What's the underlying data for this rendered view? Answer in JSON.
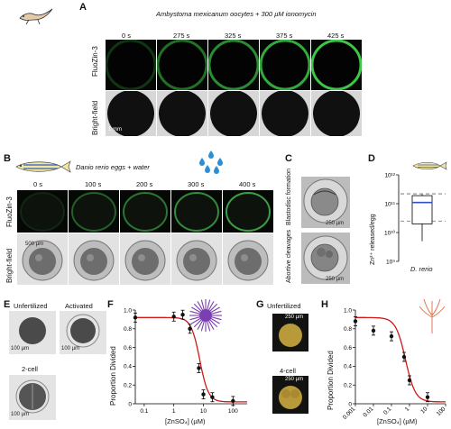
{
  "panels": {
    "A": {
      "letter": "A",
      "title": "Ambystoma mexicanum oocytes + 300 µM ionomycin",
      "times": [
        "0 s",
        "275 s",
        "325 s",
        "375 s",
        "425 s"
      ],
      "row1": "FluoZin-3",
      "row2": "Bright-field",
      "scale": "1 mm"
    },
    "B": {
      "letter": "B",
      "title": "Danio rerio eggs + water",
      "times": [
        "0 s",
        "100 s",
        "200 s",
        "300 s",
        "400 s"
      ],
      "row1": "FluoZin-3",
      "row2": "Bright-field",
      "scale": "500 µm"
    },
    "C": {
      "letter": "C",
      "row1": "Blastodisc formation",
      "row2": "Abortive cleavages",
      "scale": "250 µm"
    },
    "D": {
      "letter": "D",
      "ylabel": "Zn²⁺ released/egg",
      "xlabel": "D. rerio",
      "ticks": [
        "10⁹",
        "10¹⁰",
        "10¹¹",
        "10¹²"
      ]
    },
    "E": {
      "letter": "E",
      "labels": [
        "Unfertilized",
        "Activated",
        "2-cell"
      ],
      "scale": "100 µm"
    },
    "F": {
      "letter": "F",
      "ylabel": "Proportion Divided",
      "xlabel": "[ZnSO₄] (µM)",
      "xticks": [
        "0.1",
        "1",
        "10",
        "100"
      ],
      "yticks": [
        "0",
        "0.2",
        "0.4",
        "0.6",
        "0.8",
        "1.0"
      ]
    },
    "G": {
      "letter": "G",
      "labels": [
        "Unfertilized",
        "4-cell"
      ],
      "scale": "250 µm"
    },
    "H": {
      "letter": "H",
      "ylabel": "Proportion Divided",
      "xlabel": "[ZnSO₄] (µM)",
      "xticks": [
        "0.001",
        "0.01",
        "0.1",
        "1",
        "10",
        "100"
      ],
      "yticks": [
        "0",
        "0.2",
        "0.4",
        "0.6",
        "0.8",
        "1.0"
      ]
    }
  },
  "chart_data": [
    {
      "type": "box",
      "panel": "D",
      "ylabel": "Zn²⁺ released/egg",
      "xlabel": "D. rerio",
      "yscale": "log",
      "ylim": [
        1000000000.0,
        1000000000000.0
      ],
      "box": {
        "whisker_low": 5000000000.0,
        "q1": 20000000000.0,
        "median": 110000000000.0,
        "q3": 190000000000.0,
        "whisker_high": 210000000000.0
      },
      "dashed_lines": [
        220000000000.0,
        25000000000.0
      ]
    },
    {
      "type": "scatter",
      "panel": "F",
      "xlabel": "[ZnSO₄] (µM)",
      "ylabel": "Proportion Divided",
      "xscale": "log",
      "xlim": [
        0.05,
        300
      ],
      "ylim": [
        0,
        1.0
      ],
      "x": [
        0.05,
        1,
        2,
        3.5,
        7,
        10,
        20,
        100
      ],
      "y": [
        0.92,
        0.93,
        0.95,
        0.8,
        0.38,
        0.1,
        0.07,
        0.03
      ],
      "fit": {
        "type": "sigmoid",
        "top": 0.92,
        "bottom": 0.02,
        "ic50": 7.5,
        "hill": 3
      }
    },
    {
      "type": "scatter",
      "panel": "H",
      "xlabel": "[ZnSO₄] (µM)",
      "ylabel": "Proportion Divided",
      "xscale": "log",
      "xlim": [
        0.001,
        100
      ],
      "ylim": [
        0,
        1.0
      ],
      "x": [
        0.001,
        0.01,
        0.1,
        0.5,
        1,
        10
      ],
      "y": [
        0.88,
        0.78,
        0.72,
        0.5,
        0.25,
        0.07
      ],
      "fit": {
        "type": "sigmoid",
        "top": 0.92,
        "bottom": 0.02,
        "ic50": 0.6,
        "hill": 1.6
      }
    }
  ]
}
